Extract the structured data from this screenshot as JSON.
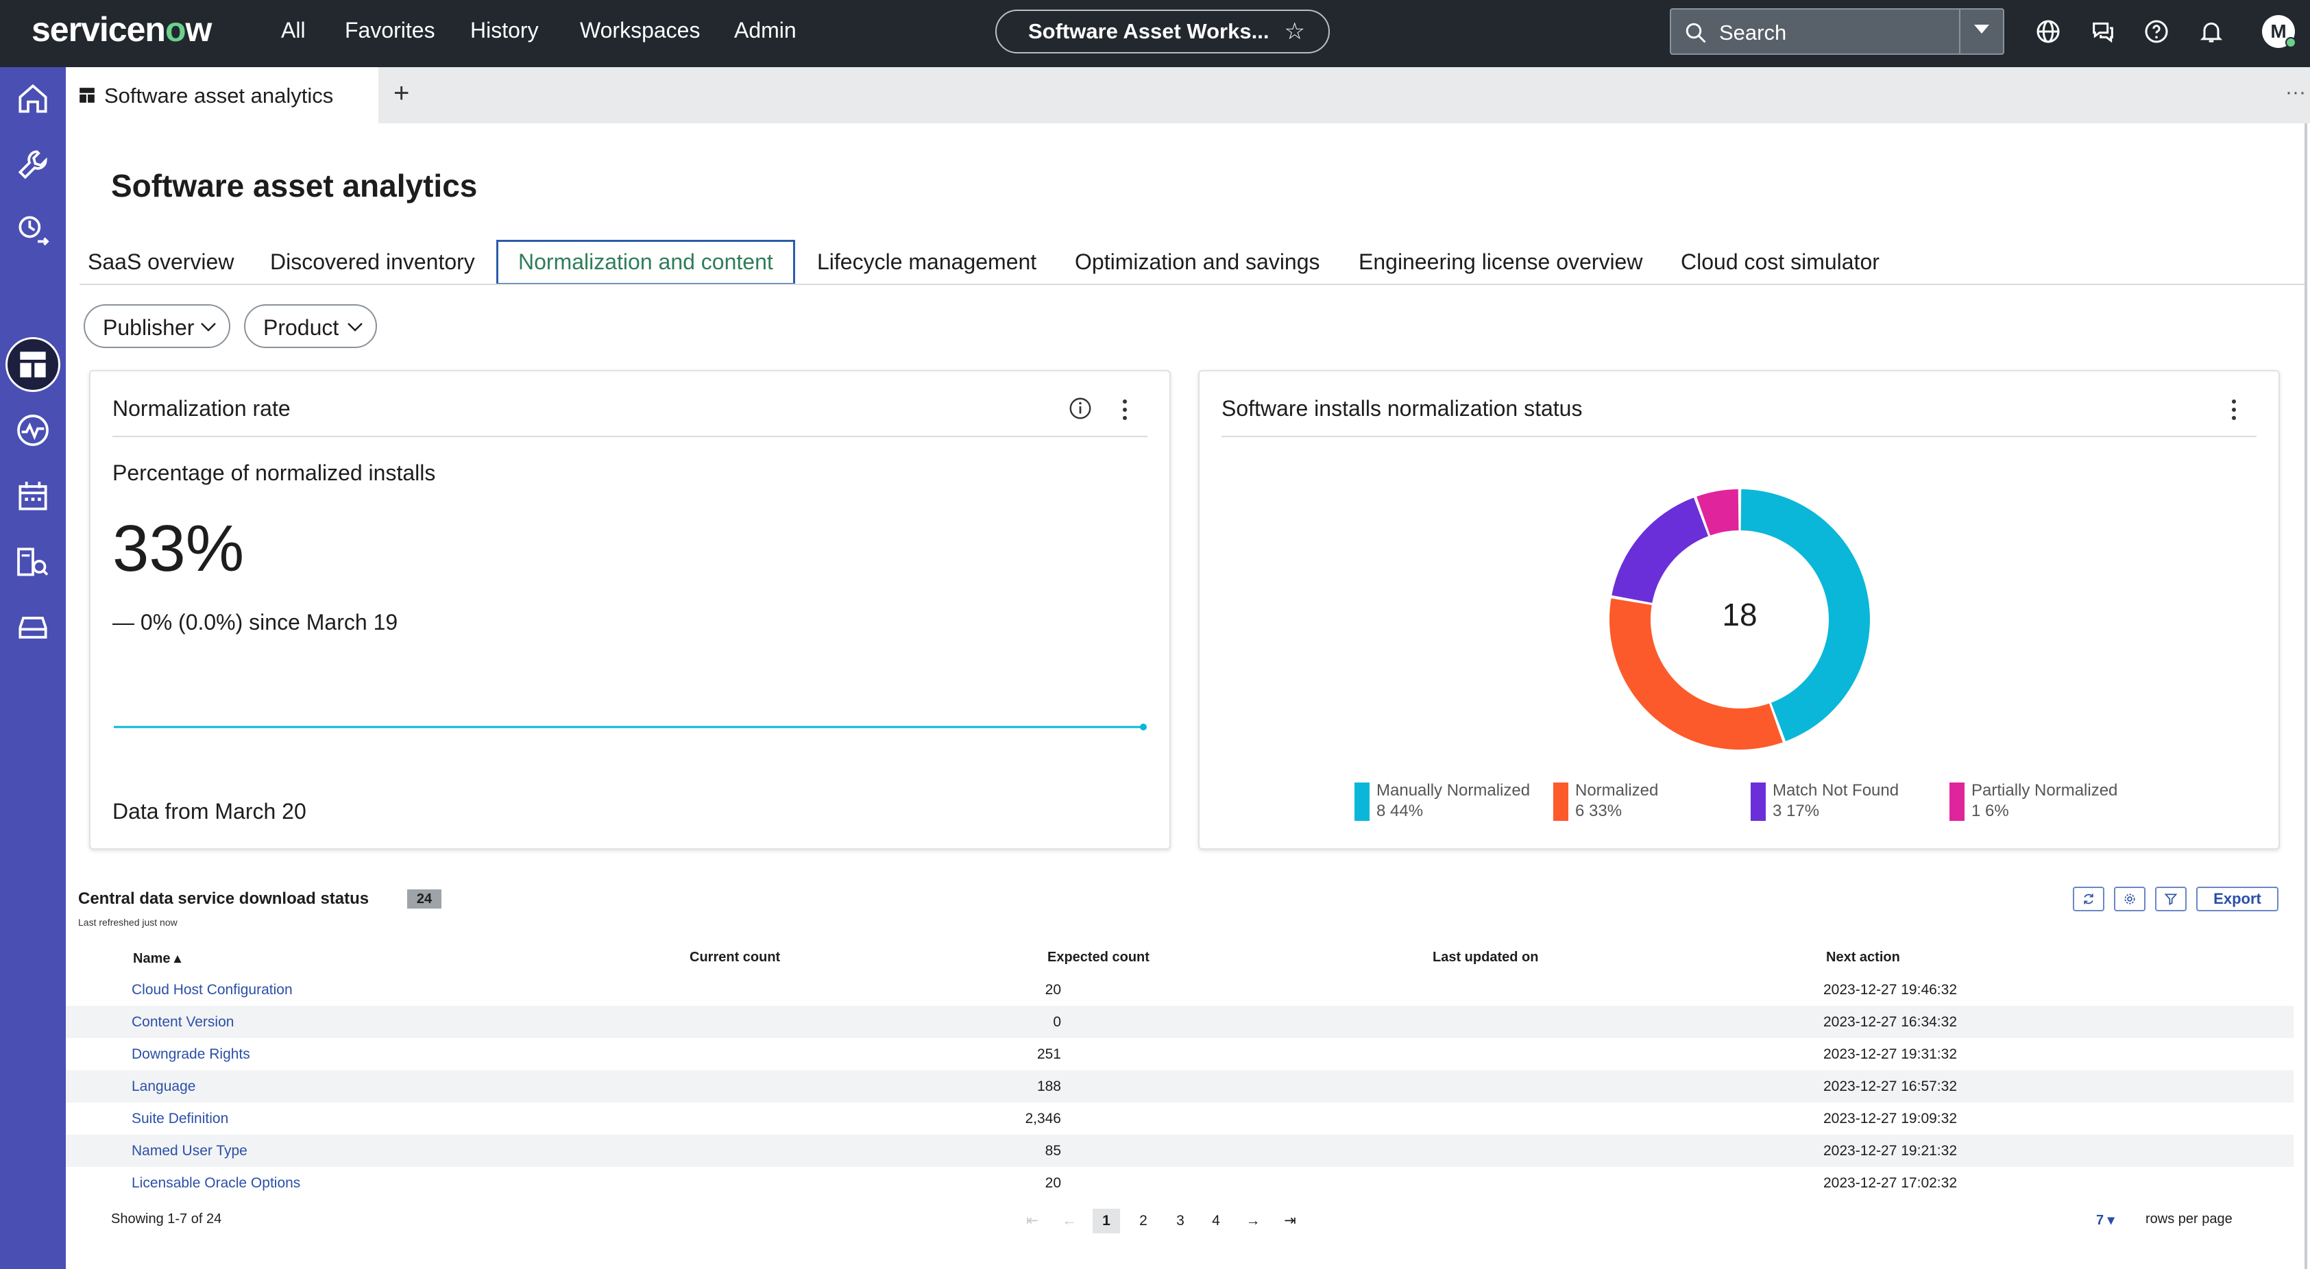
{
  "topnav": {
    "logo": "servicenow",
    "links": [
      "All",
      "Favorites",
      "History",
      "Workspaces",
      "Admin"
    ],
    "app_title": "Software Asset Works...",
    "search_placeholder": "Search",
    "avatar_initial": "M",
    "icons": [
      "globe-icon",
      "chat-icon",
      "help-icon",
      "bell-icon"
    ]
  },
  "sidebar": {
    "items": [
      "home-icon",
      "wrench-icon",
      "analytics-arrow-icon",
      "dashboard-icon",
      "activity-icon",
      "calendar-icon",
      "search-report-icon",
      "storage-icon"
    ],
    "active": "dashboard-icon"
  },
  "tabs": {
    "active_label": "Software asset analytics",
    "add_label": "+",
    "more_label": "···"
  },
  "page": {
    "title": "Software asset analytics",
    "subtabs": [
      "SaaS overview",
      "Discovered inventory",
      "Normalization and content",
      "Lifecycle management",
      "Optimization and savings",
      "Engineering license overview",
      "Cloud cost simulator"
    ],
    "active_subtab": "Normalization and content",
    "filters": [
      "Publisher",
      "Product"
    ]
  },
  "normalization_rate": {
    "title": "Normalization rate",
    "subtitle": "Percentage of normalized installs",
    "value": "33%",
    "delta": "— 0% (0.0%) since March 19",
    "footer": "Data from March 20"
  },
  "installs_status": {
    "title": "Software installs normalization status",
    "total": "18",
    "colors": {
      "manually": "#0ab7d9",
      "normalized": "#fd5a2b",
      "not_found": "#6a2fd8",
      "partial": "#e0249c"
    },
    "legend": [
      {
        "name": "Manually Normalized",
        "value": "8  44%"
      },
      {
        "name": "Normalized",
        "value": "6  33%"
      },
      {
        "name": "Match Not Found",
        "value": "3  17%"
      },
      {
        "name": "Partially Normalized",
        "value": "1  6%"
      }
    ]
  },
  "chart_data": {
    "type": "pie",
    "categories": [
      "Manually Normalized",
      "Normalized",
      "Match Not Found",
      "Partially Normalized"
    ],
    "values": [
      8,
      6,
      3,
      1
    ],
    "total": 18
  },
  "table": {
    "title": "Central data service download status",
    "count": "24",
    "refreshed": "Last refreshed just now",
    "export_label": "Export",
    "columns": [
      "Name ▴",
      "Current count",
      "Expected count",
      "Last updated on",
      "Next action"
    ],
    "rows": [
      {
        "name": "Cloud Host Configuration",
        "current": "20",
        "next": "2023-12-27 19:46:32"
      },
      {
        "name": "Content Version",
        "current": "0",
        "next": "2023-12-27 16:34:32"
      },
      {
        "name": "Downgrade Rights",
        "current": "251",
        "next": "2023-12-27 19:31:32"
      },
      {
        "name": "Language",
        "current": "188",
        "next": "2023-12-27 16:57:32"
      },
      {
        "name": "Suite Definition",
        "current": "2,346",
        "next": "2023-12-27 19:09:32"
      },
      {
        "name": "Named User Type",
        "current": "85",
        "next": "2023-12-27 19:21:32"
      },
      {
        "name": "Licensable Oracle Options",
        "current": "20",
        "next": "2023-12-27 17:02:32"
      }
    ],
    "showing": "Showing 1-7 of 24",
    "pages": [
      "1",
      "2",
      "3",
      "4"
    ],
    "current_page": "1",
    "rows_per_page": "7",
    "rows_per_page_label": "rows per page"
  }
}
